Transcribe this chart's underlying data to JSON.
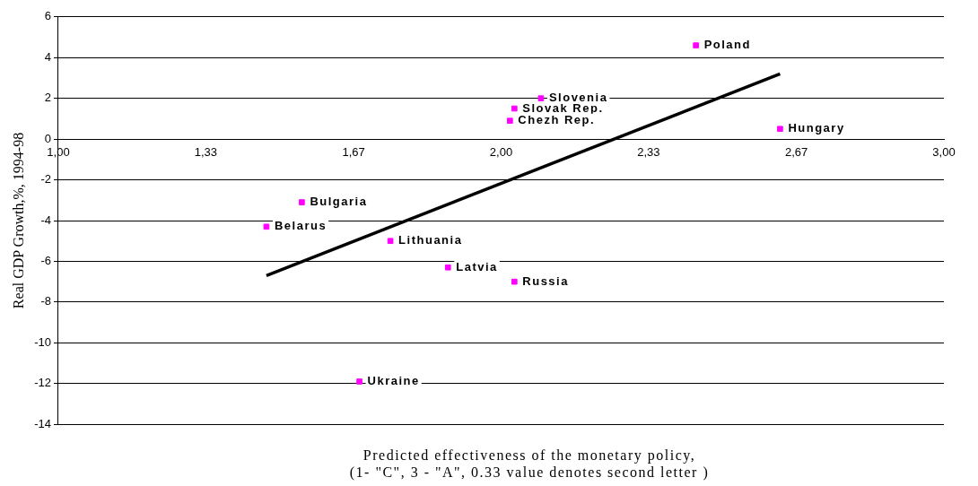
{
  "chart_data": {
    "type": "scatter",
    "xlabel": "Predicted effectiveness of the monetary policy,\n(1- \"C\", 3 - \"A\", 0.33 value denotes second letter )",
    "ylabel": "Real GDP Growth,%, 1994-98",
    "series": [
      {
        "type": "scatter",
        "color": "#ff00ff",
        "marker": "square",
        "x": [
          2.44,
          2.09,
          2.03,
          2.02,
          2.63,
          1.55,
          1.47,
          1.75,
          1.88,
          2.03,
          1.68
        ],
        "values": [
          4.6,
          2.0,
          1.5,
          0.9,
          0.5,
          -3.1,
          -4.3,
          -5.0,
          -6.3,
          -7.0,
          -11.9
        ]
      },
      {
        "type": "line",
        "color": "#000000",
        "marker": "none",
        "x": [
          1.47,
          2.63
        ],
        "values": [
          -6.7,
          3.2
        ]
      }
    ],
    "annotations": [
      {
        "text": "Poland",
        "x": 2.44,
        "y": 4.6
      },
      {
        "text": "Slovenia",
        "x": 2.09,
        "y": 2.0
      },
      {
        "text": "Slovak Rep.",
        "x": 2.03,
        "y": 1.5
      },
      {
        "text": "Chezh Rep.",
        "x": 2.02,
        "y": 0.9
      },
      {
        "text": "Hungary",
        "x": 2.63,
        "y": 0.5
      },
      {
        "text": "Bulgaria",
        "x": 1.55,
        "y": -3.1
      },
      {
        "text": "Belarus",
        "x": 1.47,
        "y": -4.3
      },
      {
        "text": "Lithuania",
        "x": 1.75,
        "y": -5.0
      },
      {
        "text": "Latvia",
        "x": 1.88,
        "y": -6.3
      },
      {
        "text": "Russia",
        "x": 2.03,
        "y": -7.0
      },
      {
        "text": "Ukraine",
        "x": 1.68,
        "y": -11.9
      }
    ],
    "xlim": [
      1,
      3
    ],
    "xticks": [
      {
        "value": 1,
        "label": "1,00"
      },
      {
        "value": 1.333,
        "label": "1,33"
      },
      {
        "value": 1.667,
        "label": "1,67"
      },
      {
        "value": 2,
        "label": "2,00"
      },
      {
        "value": 2.333,
        "label": "2,33"
      },
      {
        "value": 2.667,
        "label": "2,67"
      },
      {
        "value": 3,
        "label": "3,00"
      }
    ],
    "ylim": [
      -14,
      6
    ],
    "yticks": [
      -14,
      -12,
      -10,
      -8,
      -6,
      -4,
      -2,
      0,
      2,
      4,
      6
    ],
    "grid": "y",
    "legend": false
  }
}
